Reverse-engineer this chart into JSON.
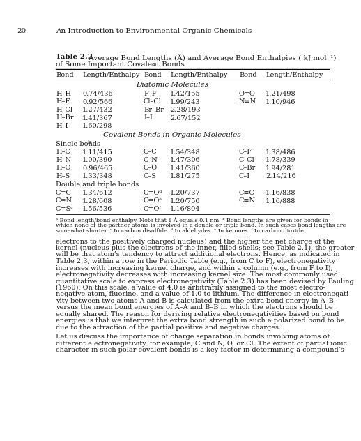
{
  "page_number": "20",
  "page_header": "An Introduction to Environmental Organic Chemicals",
  "table_title_bold": "Table 2.2",
  "table_title_normal": " Average Bond Lengths (Å) and Average Bond Enthalpies ( kJ·mol⁻¹)",
  "table_title_line2": "of Some Important Covalent Bonds",
  "table_title_super": "a",
  "col_headers": [
    "Bond",
    "Length/Enthalpy",
    "Bond",
    "Length/Enthalpy",
    "Bond",
    "Length/Enthalpy"
  ],
  "section1_label": "Diatomic Molecules",
  "diatomic_rows": [
    [
      "H–H",
      "0.74/436",
      "F–F",
      "1.42/155",
      "O=O",
      "1.21/498"
    ],
    [
      "H–F",
      "0.92/566",
      "Cl–Cl",
      "1.99/243",
      "N≡N",
      "1.10/946"
    ],
    [
      "H–Cl",
      "1.27/432",
      "Br–Br",
      "2.28/193",
      "",
      ""
    ],
    [
      "H–Br",
      "1.41/367",
      "I–I",
      "2.67/152",
      "",
      ""
    ],
    [
      "H–I",
      "1.60/298",
      "",
      "",
      "",
      ""
    ]
  ],
  "section2_label": "Covalent Bonds in Organic Molecules",
  "subsection1_label": "Single bonds",
  "subsection1_super": "b",
  "single_rows": [
    [
      "H–C",
      "1.11/415",
      "C–C",
      "1.54/348",
      "C–F",
      "1.38/486"
    ],
    [
      "H–N",
      "1.00/390",
      "C–N",
      "1.47/306",
      "C–Cl",
      "1.78/339"
    ],
    [
      "H–O",
      "0.96/465",
      "C–O",
      "1.41/360",
      "C–Br",
      "1.94/281"
    ],
    [
      "H–S",
      "1.33/348",
      "C–S",
      "1.81/275",
      "C–I",
      "2.14/216"
    ]
  ],
  "subsection2_label": "Double and triple bonds",
  "double_rows": [
    [
      "C=C",
      "1.34/612",
      "C=Oᵈ",
      "1.20/737",
      "C≡C",
      "1.16/838"
    ],
    [
      "C=N",
      "1.28/608",
      "C=Oᵉ",
      "1.20/750",
      "C≡N",
      "1.16/888"
    ],
    [
      "C=Sᶜ",
      "1.56/536",
      "C=Oᶠ",
      "1.16/804",
      "",
      ""
    ]
  ],
  "footnotes": [
    "ᵃ Bond length/bond enthalpy. Note that 1 Å equals 0.1 nm. ᵇ Bond lengths are given for bonds in",
    "which none of the partner atoms is involved in a double or triple bond. In such cases bond lengths are",
    "somewhat shorter. ᶜ In carbon disulfide. ᵈ In aldehydes. ᵉ In ketones. ᶠ In carbon dioxide."
  ],
  "body_text": [
    "electrons to the positively charged nucleus) and the higher the net charge of the",
    "kernel (nucleus plus the electrons of the inner, filled shells; see Table 2.1), the greater",
    "will be that atom’s tendency to attract additional electrons. Hence, as indicated in",
    "Table 2.3, within a row in the Periodic Table (e.g., from C to F), electronegativity",
    "increases with increasing kernel charge, and within a column (e.g., from F to I),",
    "electronegativity decreases with increasing kernel size. The most commonly used",
    "quantitative scale to express electronegativity (Table 2.3) has been devised by Pauling",
    "(1960). On this scale, a value of 4.0 is arbitrarily assigned to the most electro-",
    "negative atom, fluorine, and a value of 1.0 to lithium. The difference in electronegati-",
    "vity between two atoms A and B is calculated from the extra bond energy in A–B",
    "versus the mean bond energies of A–A and B–B in which the electrons should be",
    "equally shared. The reason for deriving relative electronegativities based on bond",
    "energies is that we interpret the extra bond strength in such a polarized bond to be",
    "due to the attraction of the partial positive and negative charges."
  ],
  "body_text2": [
    "Let us discuss the importance of charge separation in bonds involving atoms of",
    "different electronegativity, for example, C and N, O, or Cl. The extent of partial ionic",
    "character in such polar covalent bonds is a key factor in determining a compound’s"
  ],
  "bg_color": "#ffffff",
  "text_color": "#1a1a1a"
}
